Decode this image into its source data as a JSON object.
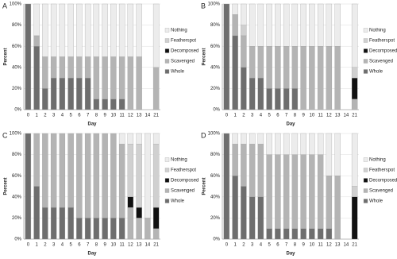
{
  "chart_data": [
    {
      "type": "bar",
      "stacked": true,
      "title": "A",
      "x_label": "Day",
      "y_label": "Percent",
      "categories": [
        "0",
        "1",
        "2",
        "3",
        "4",
        "5",
        "6",
        "7",
        "8",
        "9",
        "10",
        "11",
        "12",
        "13",
        "14",
        "21"
      ],
      "series": [
        {
          "name": "Whole",
          "color": "#6e6e6e",
          "values": [
            100,
            60,
            20,
            30,
            30,
            30,
            30,
            30,
            10,
            10,
            10,
            10,
            0,
            0,
            0,
            0
          ]
        },
        {
          "name": "Scavenged",
          "color": "#b4b4b4",
          "values": [
            0,
            10,
            30,
            20,
            20,
            20,
            20,
            20,
            40,
            40,
            40,
            40,
            50,
            50,
            0,
            40
          ]
        },
        {
          "name": "Decomposed",
          "color": "#111111",
          "values": [
            0,
            0,
            0,
            0,
            0,
            0,
            0,
            0,
            0,
            0,
            0,
            0,
            0,
            0,
            0,
            0
          ]
        },
        {
          "name": "Featherspot",
          "color": "#d0d0d0",
          "values": [
            0,
            0,
            0,
            0,
            0,
            0,
            0,
            0,
            0,
            0,
            0,
            0,
            0,
            0,
            0,
            0
          ]
        },
        {
          "name": "Nothing",
          "color": "#ececec",
          "values": [
            0,
            30,
            50,
            50,
            50,
            50,
            50,
            50,
            50,
            50,
            50,
            50,
            50,
            50,
            0,
            60
          ]
        }
      ],
      "ylim": [
        0,
        100
      ],
      "yticks": [
        {
          "value": 0,
          "label": "0%"
        },
        {
          "value": 20,
          "label": "20%"
        },
        {
          "value": 40,
          "label": "40%"
        },
        {
          "value": 60,
          "label": "60%"
        },
        {
          "value": 80,
          "label": "80%"
        },
        {
          "value": 100,
          "label": "100%"
        }
      ],
      "legend": "right"
    },
    {
      "type": "bar",
      "stacked": true,
      "title": "B",
      "x_label": "Day",
      "y_label": "Percent",
      "categories": [
        "0",
        "1",
        "2",
        "3",
        "4",
        "5",
        "6",
        "7",
        "8",
        "9",
        "10",
        "11",
        "12",
        "13",
        "14",
        "21"
      ],
      "series": [
        {
          "name": "Whole",
          "color": "#6e6e6e",
          "values": [
            100,
            70,
            40,
            30,
            30,
            20,
            20,
            20,
            20,
            0,
            0,
            0,
            0,
            0,
            0,
            0
          ]
        },
        {
          "name": "Scavenged",
          "color": "#b4b4b4",
          "values": [
            0,
            20,
            30,
            30,
            30,
            40,
            40,
            40,
            40,
            60,
            60,
            60,
            60,
            60,
            0,
            10
          ]
        },
        {
          "name": "Decomposed",
          "color": "#111111",
          "values": [
            0,
            0,
            0,
            0,
            0,
            0,
            0,
            0,
            0,
            0,
            0,
            0,
            0,
            0,
            0,
            20
          ]
        },
        {
          "name": "Featherspot",
          "color": "#d0d0d0",
          "values": [
            0,
            0,
            10,
            0,
            0,
            0,
            0,
            0,
            0,
            0,
            0,
            0,
            0,
            0,
            0,
            10
          ]
        },
        {
          "name": "Nothing",
          "color": "#ececec",
          "values": [
            0,
            10,
            20,
            40,
            40,
            40,
            40,
            40,
            40,
            40,
            40,
            40,
            40,
            40,
            0,
            60
          ]
        }
      ],
      "ylim": [
        0,
        100
      ],
      "yticks": [
        {
          "value": 0,
          "label": "0%"
        },
        {
          "value": 20,
          "label": "20%"
        },
        {
          "value": 40,
          "label": "40%"
        },
        {
          "value": 60,
          "label": "60%"
        },
        {
          "value": 80,
          "label": "80%"
        },
        {
          "value": 100,
          "label": "100%"
        }
      ],
      "legend": "right"
    },
    {
      "type": "bar",
      "stacked": true,
      "title": "C",
      "x_label": "Day",
      "y_label": "Percent",
      "categories": [
        "0",
        "1",
        "2",
        "3",
        "4",
        "5",
        "6",
        "7",
        "8",
        "9",
        "10",
        "11",
        "12",
        "13",
        "14",
        "21"
      ],
      "series": [
        {
          "name": "Whole",
          "color": "#6e6e6e",
          "values": [
            100,
            50,
            30,
            30,
            30,
            30,
            20,
            20,
            20,
            20,
            20,
            20,
            0,
            0,
            0,
            0
          ]
        },
        {
          "name": "Scavenged",
          "color": "#b4b4b4",
          "values": [
            0,
            50,
            70,
            70,
            70,
            70,
            80,
            80,
            80,
            80,
            80,
            70,
            30,
            20,
            20,
            10
          ]
        },
        {
          "name": "Decomposed",
          "color": "#111111",
          "values": [
            0,
            0,
            0,
            0,
            0,
            0,
            0,
            0,
            0,
            0,
            0,
            0,
            10,
            10,
            0,
            20
          ]
        },
        {
          "name": "Featherspot",
          "color": "#d0d0d0",
          "values": [
            0,
            0,
            0,
            0,
            0,
            0,
            0,
            0,
            0,
            0,
            0,
            0,
            50,
            60,
            0,
            60
          ]
        },
        {
          "name": "Nothing",
          "color": "#ececec",
          "values": [
            0,
            0,
            0,
            0,
            0,
            0,
            0,
            0,
            0,
            0,
            0,
            10,
            10,
            10,
            80,
            10
          ]
        }
      ],
      "ylim": [
        0,
        100
      ],
      "yticks": [
        {
          "value": 0,
          "label": "0%"
        },
        {
          "value": 20,
          "label": "20%"
        },
        {
          "value": 40,
          "label": "40%"
        },
        {
          "value": 60,
          "label": "60%"
        },
        {
          "value": 80,
          "label": "80%"
        },
        {
          "value": 100,
          "label": "100%"
        }
      ],
      "legend": "right"
    },
    {
      "type": "bar",
      "stacked": true,
      "title": "D",
      "x_label": "Day",
      "y_label": "Percent",
      "categories": [
        "0",
        "1",
        "2",
        "3",
        "4",
        "5",
        "6",
        "7",
        "8",
        "9",
        "10",
        "11",
        "12",
        "13",
        "14",
        "21"
      ],
      "series": [
        {
          "name": "Whole",
          "color": "#6e6e6e",
          "values": [
            100,
            60,
            50,
            40,
            40,
            10,
            10,
            10,
            10,
            10,
            10,
            10,
            10,
            0,
            0,
            0
          ]
        },
        {
          "name": "Scavenged",
          "color": "#b4b4b4",
          "values": [
            0,
            30,
            40,
            50,
            50,
            70,
            70,
            70,
            70,
            70,
            70,
            70,
            50,
            60,
            0,
            0
          ]
        },
        {
          "name": "Decomposed",
          "color": "#111111",
          "values": [
            0,
            0,
            0,
            0,
            0,
            0,
            0,
            0,
            0,
            0,
            0,
            0,
            0,
            0,
            0,
            40
          ]
        },
        {
          "name": "Featherspot",
          "color": "#d0d0d0",
          "values": [
            0,
            0,
            0,
            0,
            0,
            0,
            0,
            0,
            0,
            0,
            0,
            0,
            0,
            0,
            0,
            10
          ]
        },
        {
          "name": "Nothing",
          "color": "#ececec",
          "values": [
            0,
            10,
            10,
            10,
            10,
            20,
            20,
            20,
            20,
            20,
            20,
            20,
            40,
            40,
            0,
            50
          ]
        }
      ],
      "ylim": [
        0,
        100
      ],
      "yticks": [
        {
          "value": 0,
          "label": "0%"
        },
        {
          "value": 20,
          "label": "20%"
        },
        {
          "value": 40,
          "label": "40%"
        },
        {
          "value": 60,
          "label": "60%"
        },
        {
          "value": 80,
          "label": "80%"
        },
        {
          "value": 100,
          "label": "100%"
        }
      ],
      "legend": "right"
    }
  ]
}
